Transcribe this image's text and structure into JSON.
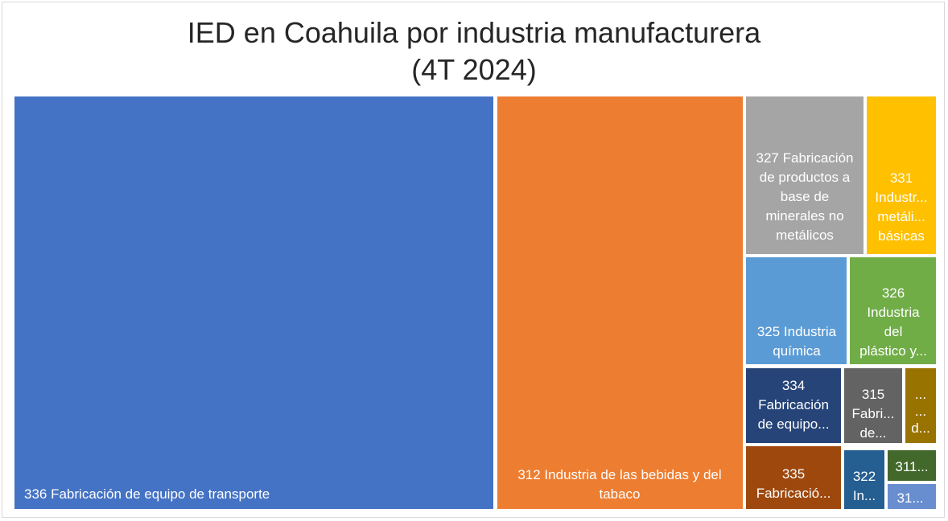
{
  "chart_data": {
    "type": "treemap",
    "title_lines": [
      "IED en Coahuila por industria manufacturera",
      "(4T 2024)"
    ],
    "colors": {
      "336": "#4472C4",
      "312": "#ED7D31",
      "327": "#A5A5A5",
      "331": "#FFC000",
      "325": "#5B9BD5",
      "326": "#70AD47",
      "334": "#264478",
      "315": "#636363",
      "x1": "#997300",
      "335": "#9E480E",
      "322": "#255E91",
      "311": "#43682B",
      "x2": "#698ED0"
    },
    "items": [
      {
        "id": "336",
        "label_lines": [
          "336 Fabricación de equipo de transporte"
        ],
        "align": "start"
      },
      {
        "id": "312",
        "label_lines": [
          "312 Industria de las bebidas y del",
          "tabaco"
        ],
        "align": "middle"
      },
      {
        "id": "327",
        "label_lines": [
          "327 Fabricación",
          "de productos a",
          "base de",
          "minerales no",
          "metálicos"
        ],
        "align": "middle"
      },
      {
        "id": "331",
        "label_lines": [
          "331",
          "Industr...",
          "metáli...",
          "básicas"
        ],
        "align": "middle"
      },
      {
        "id": "325",
        "label_lines": [
          "325 Industria",
          "química"
        ],
        "align": "middle"
      },
      {
        "id": "326",
        "label_lines": [
          "326",
          "Industria",
          "del",
          "plástico y..."
        ],
        "align": "middle"
      },
      {
        "id": "334",
        "label_lines": [
          "334",
          "Fabricación",
          "de equipo..."
        ],
        "align": "middle"
      },
      {
        "id": "315",
        "label_lines": [
          "315",
          "Fabri...",
          "de..."
        ],
        "align": "middle"
      },
      {
        "id": "x1",
        "label_lines": [
          "...",
          "...",
          "d..."
        ],
        "align": "middle"
      },
      {
        "id": "335",
        "label_lines": [
          "335",
          "Fabricació..."
        ],
        "align": "middle"
      },
      {
        "id": "322",
        "label_lines": [
          "322",
          "In..."
        ],
        "align": "middle"
      },
      {
        "id": "311",
        "label_lines": [
          "311..."
        ],
        "align": "middle"
      },
      {
        "id": "x2",
        "label_lines": [
          "31..."
        ],
        "align": "middle"
      }
    ]
  }
}
